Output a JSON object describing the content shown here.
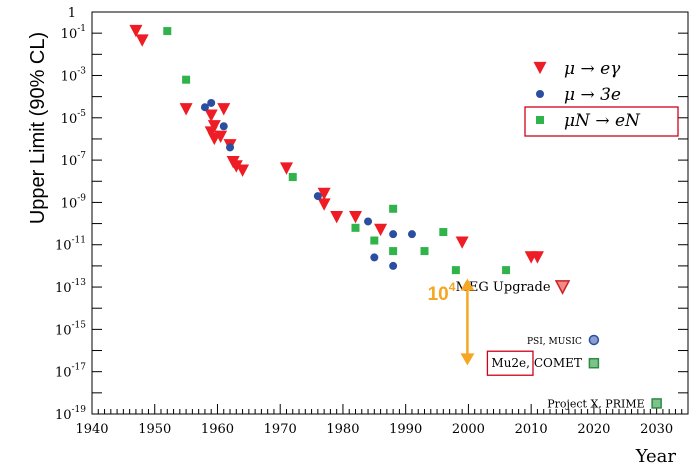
{
  "chart_data": {
    "type": "scatter",
    "ylabel": "Upper Limit (90% CL)",
    "xlabel": "Year",
    "xlim": [
      1940,
      2035
    ],
    "ylim_log10": [
      -19,
      0
    ],
    "yscale": "log",
    "x_ticks": [
      1940,
      1950,
      1960,
      1970,
      1980,
      1990,
      2000,
      2010,
      2020,
      2030
    ],
    "y_ticks": [
      {
        "base": "1",
        "exp": ""
      },
      {
        "base": "10",
        "exp": "-1"
      },
      {
        "base": "10",
        "exp": "-3"
      },
      {
        "base": "10",
        "exp": "-5"
      },
      {
        "base": "10",
        "exp": "-7"
      },
      {
        "base": "10",
        "exp": "-9"
      },
      {
        "base": "10",
        "exp": "-11"
      },
      {
        "base": "10",
        "exp": "-13"
      },
      {
        "base": "10",
        "exp": "-15"
      },
      {
        "base": "10",
        "exp": "-17"
      },
      {
        "base": "10",
        "exp": "-19"
      }
    ],
    "legend": [
      {
        "label": "μ → eγ",
        "marker": "triangle",
        "color": "#ee1c24"
      },
      {
        "label": "μ → 3e",
        "marker": "circle",
        "color": "#2b4ea0"
      },
      {
        "label": "μN → eN",
        "marker": "square",
        "color": "#2fb34a",
        "boxed": true
      }
    ],
    "legend_position": "top-right",
    "series": [
      {
        "name": "μ → eγ",
        "marker": "triangle",
        "color": "#ee1c24",
        "points": [
          [
            1947,
            -0.9
          ],
          [
            1948,
            -1.35
          ],
          [
            1955,
            -4.6
          ],
          [
            1959,
            -4.9
          ],
          [
            1959.5,
            -5.4
          ],
          [
            1959,
            -5.7
          ],
          [
            1959.5,
            -6.0
          ],
          [
            1960.5,
            -5.9
          ],
          [
            1961,
            -4.6
          ],
          [
            1962,
            -6.3
          ],
          [
            1962.5,
            -7.1
          ],
          [
            1963,
            -7.3
          ],
          [
            1964,
            -7.5
          ],
          [
            1971,
            -7.4
          ],
          [
            1977,
            -8.6
          ],
          [
            1977,
            -9.1
          ],
          [
            1979,
            -9.7
          ],
          [
            1982,
            -9.7
          ],
          [
            1986,
            -10.3
          ],
          [
            1999,
            -10.9
          ],
          [
            2010,
            -11.6
          ],
          [
            2011,
            -11.6
          ]
        ]
      },
      {
        "name": "μ → 3e",
        "marker": "circle",
        "color": "#2b4ea0",
        "points": [
          [
            1958,
            -4.5
          ],
          [
            1959,
            -4.3
          ],
          [
            1961,
            -5.4
          ],
          [
            1962,
            -6.4
          ],
          [
            1976,
            -8.7
          ],
          [
            1984,
            -9.9
          ],
          [
            1985,
            -11.6
          ],
          [
            1988,
            -10.5
          ],
          [
            1988,
            -12.0
          ],
          [
            1991,
            -10.5
          ]
        ]
      },
      {
        "name": "μN → eN",
        "marker": "square",
        "color": "#2fb34a",
        "points": [
          [
            1952,
            -0.9
          ],
          [
            1955,
            -3.2
          ],
          [
            1972,
            -7.8
          ],
          [
            1982,
            -10.2
          ],
          [
            1985,
            -10.8
          ],
          [
            1988,
            -9.3
          ],
          [
            1988,
            -11.3
          ],
          [
            1993,
            -11.3
          ],
          [
            1996,
            -10.4
          ],
          [
            1998,
            -12.2
          ],
          [
            2006,
            -12.2
          ]
        ]
      }
    ],
    "future": [
      {
        "label": "MEG Upgrade",
        "marker": "triangle",
        "color": "#f08a8a",
        "stroke": "#cc2222",
        "x": 2015,
        "log10y": -13.0
      },
      {
        "label": "PSI, MUSIC",
        "marker": "circle",
        "color": "#8a9fd0",
        "stroke": "#2b4ea0",
        "x": 2020,
        "log10y": -15.5
      },
      {
        "label": "COMET",
        "prefix": "Mu2e,",
        "prefix_boxed": true,
        "marker": "square",
        "color": "#7dc28a",
        "stroke": "#2f8a44",
        "x": 2020,
        "log10y": -16.6
      },
      {
        "label": "Project X, PRIME",
        "marker": "square",
        "color": "#7dc28a",
        "stroke": "#2f8a44",
        "x": 2030,
        "log10y": -18.5
      }
    ],
    "annotation": {
      "base": "10",
      "exp": "4",
      "arrow_x": 2000,
      "arrow_from_log10": -12.6,
      "arrow_to_log10": -16.7,
      "color": "#f5a623"
    }
  }
}
